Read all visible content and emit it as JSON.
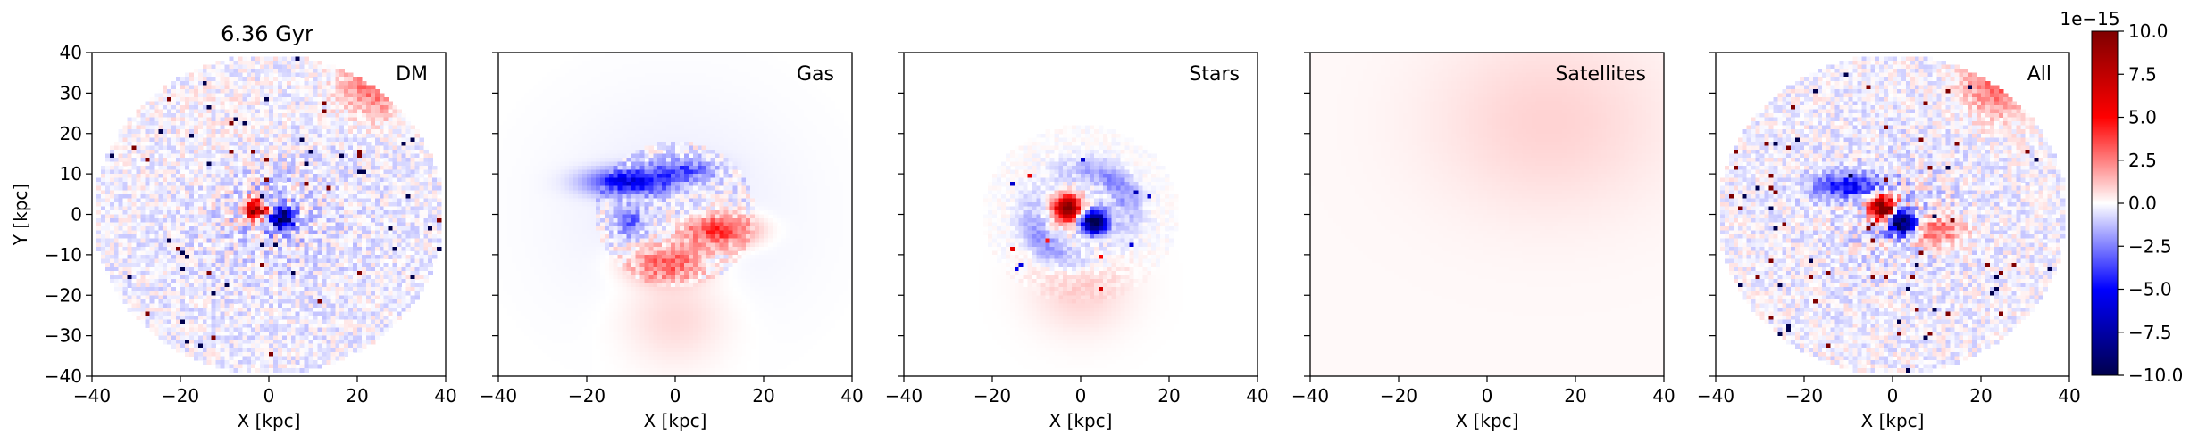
{
  "figure": {
    "title": "6.36 Gyr"
  },
  "chart_data": {
    "type": "heatmap",
    "xlabel": "X [kpc]",
    "ylabel": "Y [kpc]",
    "xlim": [
      -40,
      40
    ],
    "ylim": [
      -40,
      40
    ],
    "xticks": [
      -40,
      -20,
      0,
      20,
      40
    ],
    "yticks": [
      -40,
      -30,
      -20,
      -10,
      0,
      10,
      20,
      30,
      40
    ],
    "colormap": "seismic",
    "colormap_colors": [
      "#00004c",
      "#0000ff",
      "#ffffff",
      "#ff0000",
      "#7f0000"
    ],
    "colorbar": {
      "range": [
        -10.0,
        10.0
      ],
      "ticks": [
        -10.0,
        -7.5,
        -5.0,
        -2.5,
        0.0,
        2.5,
        5.0,
        7.5,
        10.0
      ],
      "tick_labels": [
        "−10.0",
        "−7.5",
        "−5.0",
        "−2.5",
        "0.0",
        "2.5",
        "5.0",
        "7.5",
        "10.0"
      ],
      "offset_text": "1e−15"
    },
    "panels": [
      {
        "label": "DM",
        "ylabel_shown": true
      },
      {
        "label": "Gas",
        "ylabel_shown": false
      },
      {
        "label": "Stars",
        "ylabel_shown": false
      },
      {
        "label": "Satellites",
        "ylabel_shown": false
      },
      {
        "label": "All",
        "ylabel_shown": false
      }
    ],
    "tick_text": {
      "x": [
        "−40",
        "−20",
        "0",
        "20",
        "40"
      ],
      "y": [
        "−40",
        "−30",
        "−20",
        "−10",
        "0",
        "10",
        "20",
        "30",
        "40"
      ]
    }
  }
}
